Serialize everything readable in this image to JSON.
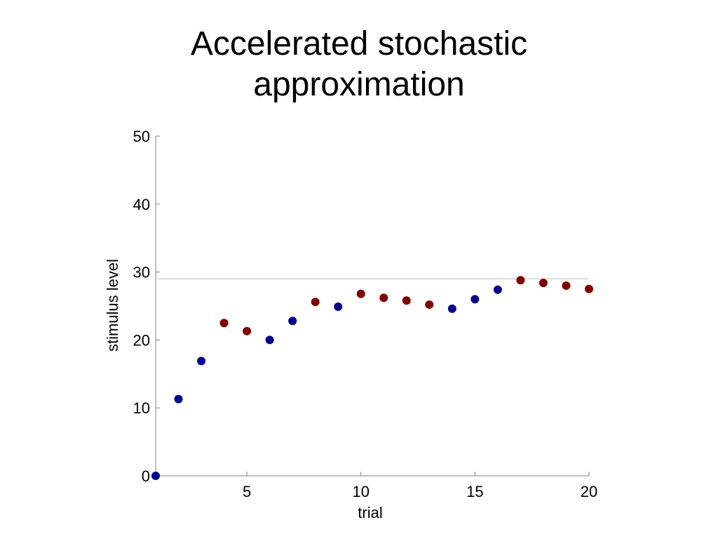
{
  "title_lines": [
    "Accelerated stochastic",
    "approximation"
  ],
  "chart_data": {
    "type": "scatter",
    "xlabel": "trial",
    "ylabel": "stimulus level",
    "xlim": [
      1,
      20
    ],
    "ylim": [
      0,
      50
    ],
    "xticks": [
      5,
      10,
      15,
      20
    ],
    "yticks": [
      0,
      10,
      20,
      30,
      40,
      50
    ],
    "grid": false,
    "reference_line": 29,
    "colors": {
      "blue": "#00008f",
      "red": "#800000",
      "axis": "#808080",
      "reference": "#c0c0c0"
    },
    "points": [
      {
        "x": 1,
        "y": 0,
        "color": "blue"
      },
      {
        "x": 2,
        "y": 11.3,
        "color": "blue"
      },
      {
        "x": 3,
        "y": 16.9,
        "color": "blue"
      },
      {
        "x": 4,
        "y": 22.5,
        "color": "red"
      },
      {
        "x": 5,
        "y": 21.3,
        "color": "red"
      },
      {
        "x": 6,
        "y": 20.0,
        "color": "blue"
      },
      {
        "x": 7,
        "y": 22.8,
        "color": "blue"
      },
      {
        "x": 8,
        "y": 25.6,
        "color": "red"
      },
      {
        "x": 9,
        "y": 24.9,
        "color": "blue"
      },
      {
        "x": 10,
        "y": 26.8,
        "color": "red"
      },
      {
        "x": 11,
        "y": 26.2,
        "color": "red"
      },
      {
        "x": 12,
        "y": 25.8,
        "color": "red"
      },
      {
        "x": 13,
        "y": 25.2,
        "color": "red"
      },
      {
        "x": 14,
        "y": 24.6,
        "color": "blue"
      },
      {
        "x": 15,
        "y": 26.0,
        "color": "blue"
      },
      {
        "x": 16,
        "y": 27.4,
        "color": "blue"
      },
      {
        "x": 17,
        "y": 28.8,
        "color": "red"
      },
      {
        "x": 18,
        "y": 28.4,
        "color": "red"
      },
      {
        "x": 19,
        "y": 28.0,
        "color": "red"
      },
      {
        "x": 20,
        "y": 27.5,
        "color": "red"
      }
    ]
  }
}
